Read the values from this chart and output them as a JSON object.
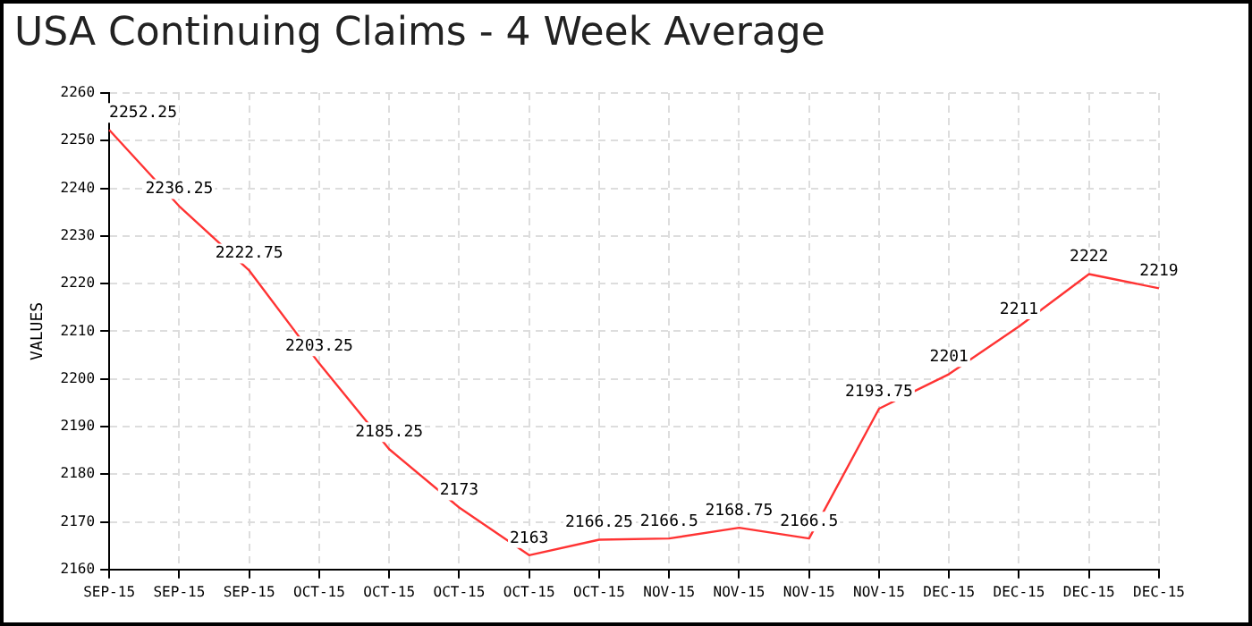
{
  "chart_data": {
    "type": "line",
    "title": "USA Continuing Claims - 4 Week Average",
    "ylabel": "VALUES",
    "categories": [
      "SEP-15",
      "SEP-15",
      "SEP-15",
      "OCT-15",
      "OCT-15",
      "OCT-15",
      "OCT-15",
      "OCT-15",
      "NOV-15",
      "NOV-15",
      "NOV-15",
      "NOV-15",
      "DEC-15",
      "DEC-15",
      "DEC-15",
      "DEC-15"
    ],
    "series": [
      {
        "color": "#ff3333",
        "values": [
          2252.25,
          2236.25,
          2222.75,
          2203.25,
          2185.25,
          2173,
          2163,
          2166.25,
          2166.5,
          2168.75,
          2166.5,
          2193.75,
          2201,
          2211,
          2222,
          2219
        ]
      }
    ],
    "ylim": [
      2160,
      2260
    ],
    "yticks": [
      2160,
      2170,
      2180,
      2190,
      2200,
      2210,
      2220,
      2230,
      2240,
      2250,
      2260
    ],
    "grid": true,
    "legend": false,
    "marker": "none",
    "line_style": "solid",
    "data_labels": true
  }
}
